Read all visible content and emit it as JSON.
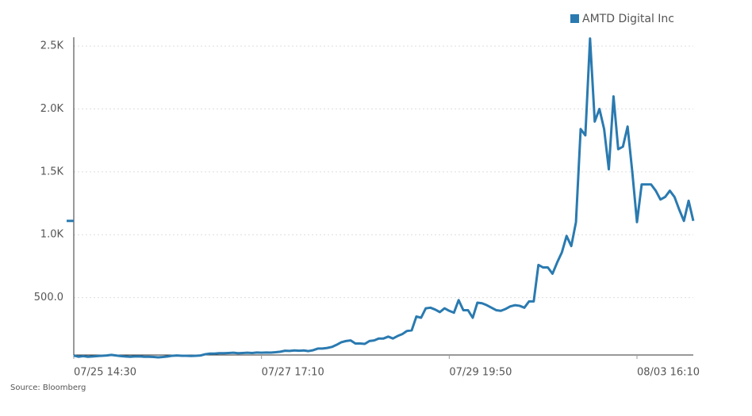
{
  "chart_data": {
    "type": "line",
    "source": "Source: Bloomberg",
    "categories": [
      "07/25 14:30",
      null,
      null,
      null,
      null,
      null,
      null,
      null,
      null,
      null,
      null,
      null,
      null,
      null,
      null,
      null,
      null,
      null,
      null,
      null,
      null,
      null,
      null,
      null,
      null,
      null,
      null,
      null,
      null,
      null,
      null,
      null,
      null,
      null,
      null,
      null,
      null,
      null,
      null,
      null,
      "07/27 17:10",
      null,
      null,
      null,
      null,
      null,
      null,
      null,
      null,
      null,
      null,
      null,
      null,
      null,
      null,
      null,
      null,
      null,
      null,
      null,
      null,
      null,
      null,
      null,
      null,
      null,
      null,
      null,
      null,
      null,
      null,
      null,
      null,
      null,
      null,
      null,
      null,
      null,
      null,
      null,
      "07/29 19:50",
      null,
      null,
      null,
      null,
      null,
      null,
      null,
      null,
      null,
      null,
      null,
      null,
      null,
      null,
      null,
      null,
      null,
      null,
      null,
      null,
      null,
      null,
      null,
      null,
      null,
      null,
      null,
      null,
      null,
      null,
      null,
      null,
      null,
      null,
      null,
      null,
      null,
      null,
      null,
      "08/03 16:10",
      null,
      null,
      null,
      null,
      null,
      null,
      null,
      null,
      null,
      null,
      null,
      null
    ],
    "series": [
      {
        "name": "AMTD Digital Inc",
        "color": "#2a7ab0",
        "values": [
          40,
          30,
          35,
          30,
          32,
          35,
          38,
          40,
          45,
          40,
          35,
          32,
          30,
          32,
          33,
          30,
          30,
          28,
          25,
          28,
          32,
          38,
          40,
          38,
          38,
          36,
          38,
          40,
          50,
          55,
          55,
          58,
          58,
          60,
          62,
          58,
          60,
          62,
          60,
          64,
          62,
          64,
          63,
          66,
          70,
          78,
          76,
          80,
          78,
          80,
          75,
          82,
          95,
          95,
          100,
          108,
          125,
          145,
          155,
          160,
          135,
          135,
          132,
          155,
          160,
          175,
          175,
          190,
          175,
          195,
          210,
          235,
          240,
          350,
          340,
          415,
          420,
          405,
          385,
          415,
          395,
          380,
          480,
          400,
          400,
          340,
          460,
          455,
          440,
          420,
          400,
          395,
          410,
          430,
          440,
          435,
          420,
          470,
          470,
          760,
          740,
          740,
          690,
          780,
          860,
          990,
          910,
          1100,
          1840,
          1790,
          2560,
          1900,
          2000,
          1840,
          1520,
          2100,
          1680,
          1700,
          1860,
          1500,
          1100,
          1400,
          1400,
          1400,
          1350,
          1280,
          1300,
          1350,
          1300,
          1200,
          1110,
          1270,
          1110
        ]
      }
    ],
    "ylim": [
      44,
      2570
    ],
    "yticks": [
      {
        "value": 500,
        "label": "500.0"
      },
      {
        "value": 1000,
        "label": "1.0K"
      },
      {
        "value": 1500,
        "label": "1.5K"
      },
      {
        "value": 2000,
        "label": "2.0K"
      },
      {
        "value": 2500,
        "label": "2.5K"
      }
    ],
    "grid": true,
    "legend": "top-right"
  }
}
